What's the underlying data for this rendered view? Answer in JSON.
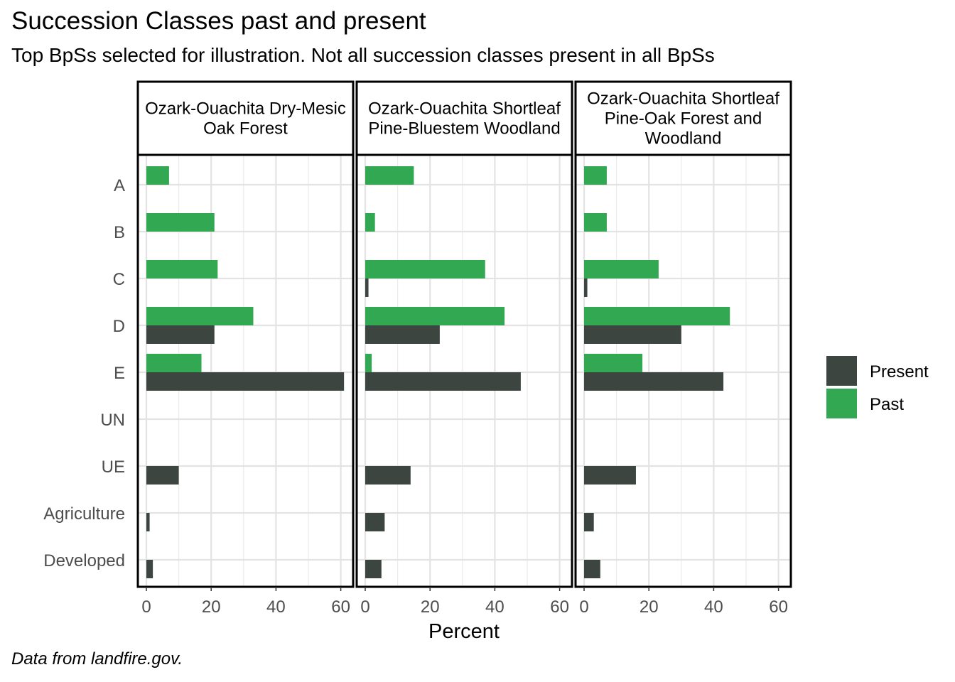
{
  "title": "Succession Classes past and present",
  "subtitle": "Top BpSs selected for illustration. Not all succession classes present in all BpSs",
  "caption": "Data from landfire.gov.",
  "colors": {
    "Present": "#3d4540",
    "Past": "#32a852"
  },
  "chart_data": {
    "type": "bar",
    "orientation": "horizontal",
    "categories": [
      "A",
      "B",
      "C",
      "D",
      "E",
      "UN",
      "UE",
      "Agriculture",
      "Developed"
    ],
    "xlabel": "Percent",
    "ylabel": "",
    "xlim": [
      0,
      62
    ],
    "xticks": [
      0,
      20,
      40,
      60
    ],
    "grid": true,
    "legend": {
      "position": "right",
      "entries": [
        "Present",
        "Past"
      ]
    },
    "panels": [
      {
        "title_lines": [
          "Ozark-Ouachita Dry-Mesic",
          "Oak Forest"
        ],
        "series": [
          {
            "name": "Past",
            "values": [
              7,
              21,
              22,
              33,
              17,
              0,
              0,
              0,
              0
            ]
          },
          {
            "name": "Present",
            "values": [
              0,
              0,
              0,
              21,
              61,
              0,
              10,
              1,
              2
            ]
          }
        ]
      },
      {
        "title_lines": [
          "Ozark-Ouachita Shortleaf",
          "Pine-Bluestem Woodland"
        ],
        "series": [
          {
            "name": "Past",
            "values": [
              15,
              3,
              37,
              43,
              2,
              0,
              0,
              0,
              0
            ]
          },
          {
            "name": "Present",
            "values": [
              0,
              0,
              1,
              23,
              48,
              0,
              14,
              6,
              5
            ]
          }
        ]
      },
      {
        "title_lines": [
          "Ozark-Ouachita Shortleaf",
          "Pine-Oak Forest and",
          "Woodland"
        ],
        "series": [
          {
            "name": "Past",
            "values": [
              7,
              7,
              23,
              45,
              18,
              0,
              0,
              0,
              0
            ]
          },
          {
            "name": "Present",
            "values": [
              0,
              0,
              1,
              30,
              43,
              0,
              16,
              3,
              5
            ]
          }
        ]
      }
    ]
  }
}
